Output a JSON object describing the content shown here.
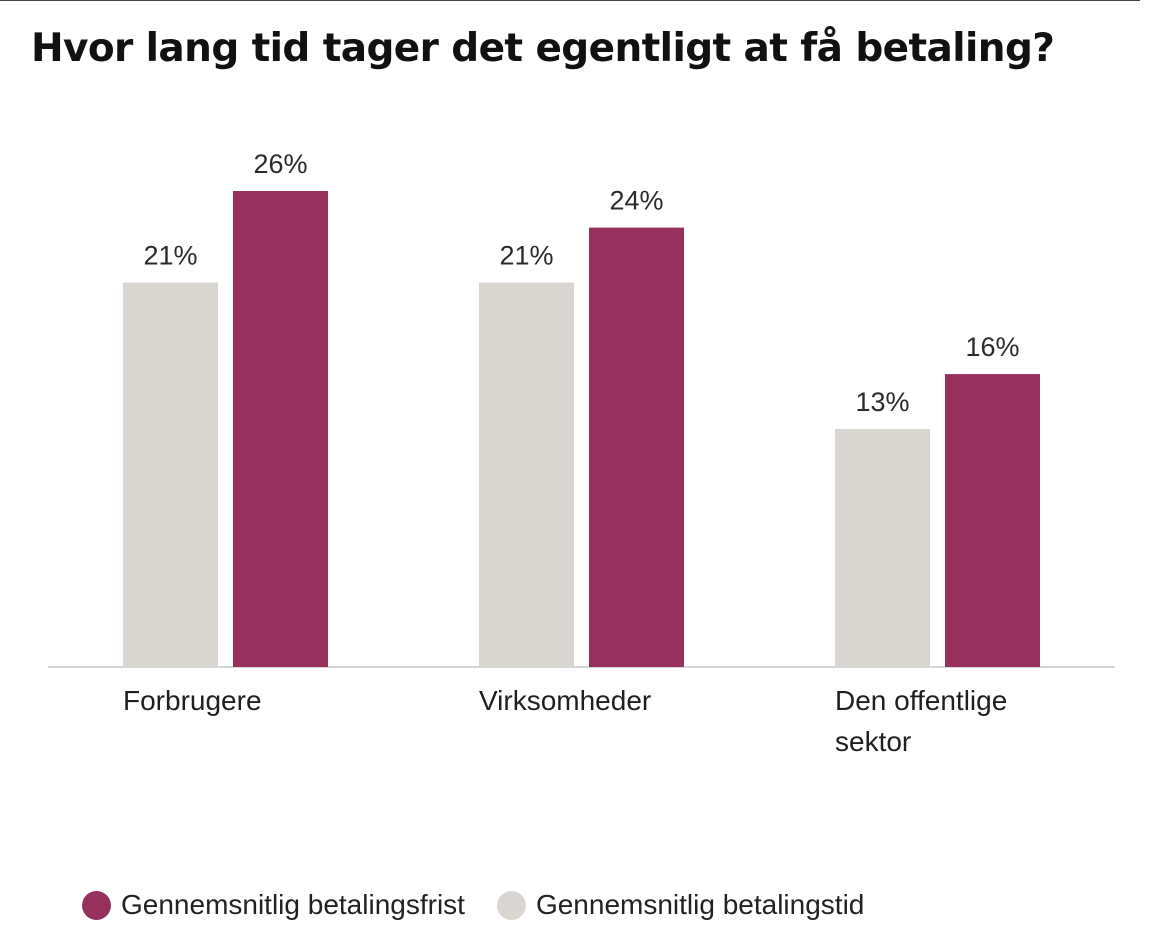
{
  "title": "Hvor lang tid tager det egentligt at få betaling?",
  "colors": {
    "betalingstid": "#d9d6d2",
    "betalingsfrist": "#98305e",
    "axis": "#c9c9c9",
    "text": "#2b2b2b"
  },
  "legend": [
    {
      "label": "Gennemsnitlig betalingsfrist",
      "color": "#98305e"
    },
    {
      "label": "Gennemsnitlig betalingstid",
      "color": "#d9d6d2"
    }
  ],
  "chart_data": {
    "type": "bar",
    "title": "Hvor lang tid tager det egentligt at få betaling?",
    "categories": [
      [
        "Forbrugere"
      ],
      [
        "Virksomheder"
      ],
      [
        "Den offentlige",
        "sektor"
      ]
    ],
    "series": [
      {
        "name": "Gennemsnitlig betalingstid",
        "values": [
          21,
          21,
          13
        ],
        "labels": [
          "21%",
          "21%",
          "13%"
        ],
        "color": "#d9d6d2"
      },
      {
        "name": "Gennemsnitlig betalingsfrist",
        "values": [
          26,
          24,
          16
        ],
        "labels": [
          "26%",
          "24%",
          "16%"
        ],
        "color": "#98305e"
      }
    ],
    "ylim": [
      0,
      26
    ],
    "grid": false,
    "legend_position": "bottom-left",
    "xlabel": "",
    "ylabel": ""
  }
}
